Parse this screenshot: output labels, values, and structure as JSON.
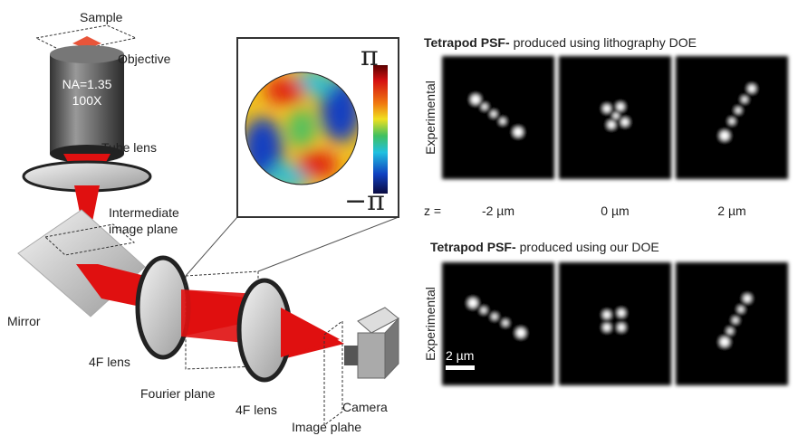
{
  "labels": {
    "sample": "Sample",
    "objective": "Objective",
    "na": "NA=1.35",
    "mag": "100X",
    "tube_lens": "Tube lens",
    "intermediate": [
      "Intermediate",
      "image plane"
    ],
    "mirror": "Mirror",
    "lens_4f_1": "4F lens",
    "fourier_plane": "Fourier plane",
    "lens_4f_2": "4F lens",
    "camera": "Camera",
    "image_plane": "Image plahe"
  },
  "inset": {
    "max": "π",
    "min": "−π"
  },
  "panels": [
    {
      "title_bold": "Tetrapod PSF-",
      "title_rest": "produced using lithography DOE",
      "row_label": "Experimental"
    },
    {
      "title_bold": "Tetrapod PSF-",
      "title_rest": "produced using our DOE",
      "row_label": "Experimental"
    }
  ],
  "z_label": "z =",
  "z_values": [
    "-2 µm",
    "0 µm",
    "2 µm"
  ],
  "scale_bar": "2 µm"
}
